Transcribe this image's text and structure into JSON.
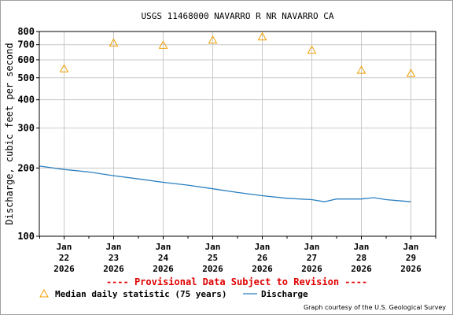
{
  "chart_data": {
    "type": "line",
    "title": "USGS 11468000 NAVARRO R NR NAVARRO CA",
    "ylabel": "Discharge, cubic feet per second",
    "y_scale": "log",
    "ylim": [
      100,
      800
    ],
    "y_ticks": [
      100,
      200,
      300,
      400,
      500,
      600,
      700,
      800
    ],
    "xlim": [
      "2026-01-21T12:00",
      "2026-01-29T12:00"
    ],
    "x_ticks": [
      {
        "x": "2026-01-22",
        "month": "Jan",
        "day": "22",
        "year": "2026"
      },
      {
        "x": "2026-01-23",
        "month": "Jan",
        "day": "23",
        "year": "2026"
      },
      {
        "x": "2026-01-24",
        "month": "Jan",
        "day": "24",
        "year": "2026"
      },
      {
        "x": "2026-01-25",
        "month": "Jan",
        "day": "25",
        "year": "2026"
      },
      {
        "x": "2026-01-26",
        "month": "Jan",
        "day": "26",
        "year": "2026"
      },
      {
        "x": "2026-01-27",
        "month": "Jan",
        "day": "27",
        "year": "2026"
      },
      {
        "x": "2026-01-28",
        "month": "Jan",
        "day": "28",
        "year": "2026"
      },
      {
        "x": "2026-01-29",
        "month": "Jan",
        "day": "29",
        "year": "2026"
      }
    ],
    "grid": true,
    "series": [
      {
        "name": "Median daily statistic (75 years)",
        "kind": "marker",
        "color": "#f0a000",
        "points": [
          {
            "x": "2026-01-22",
            "y": 548
          },
          {
            "x": "2026-01-23",
            "y": 712
          },
          {
            "x": "2026-01-24",
            "y": 696
          },
          {
            "x": "2026-01-25",
            "y": 733
          },
          {
            "x": "2026-01-26",
            "y": 758
          },
          {
            "x": "2026-01-27",
            "y": 662
          },
          {
            "x": "2026-01-28",
            "y": 540
          },
          {
            "x": "2026-01-29",
            "y": 523
          }
        ]
      },
      {
        "name": "Discharge",
        "kind": "line",
        "color": "#2b7fc0",
        "points": [
          {
            "x": "2026-01-21T12:00",
            "y": 204
          },
          {
            "x": "2026-01-22T00:00",
            "y": 197
          },
          {
            "x": "2026-01-22T12:00",
            "y": 192
          },
          {
            "x": "2026-01-23T00:00",
            "y": 185
          },
          {
            "x": "2026-01-23T12:00",
            "y": 179
          },
          {
            "x": "2026-01-24T00:00",
            "y": 173
          },
          {
            "x": "2026-01-24T12:00",
            "y": 168
          },
          {
            "x": "2026-01-25T00:00",
            "y": 162
          },
          {
            "x": "2026-01-25T12:00",
            "y": 156
          },
          {
            "x": "2026-01-26T00:00",
            "y": 151
          },
          {
            "x": "2026-01-26T12:00",
            "y": 147
          },
          {
            "x": "2026-01-27T00:00",
            "y": 145
          },
          {
            "x": "2026-01-27T06:00",
            "y": 142
          },
          {
            "x": "2026-01-27T12:00",
            "y": 146
          },
          {
            "x": "2026-01-28T00:00",
            "y": 146
          },
          {
            "x": "2026-01-28T06:00",
            "y": 148
          },
          {
            "x": "2026-01-28T12:00",
            "y": 145
          },
          {
            "x": "2026-01-29T00:00",
            "y": 142
          }
        ]
      }
    ],
    "legend_position": "bottom-left",
    "notice": "---- Provisional Data Subject to Revision ----",
    "credit": "Graph courtesy of the U.S. Geological Survey"
  }
}
